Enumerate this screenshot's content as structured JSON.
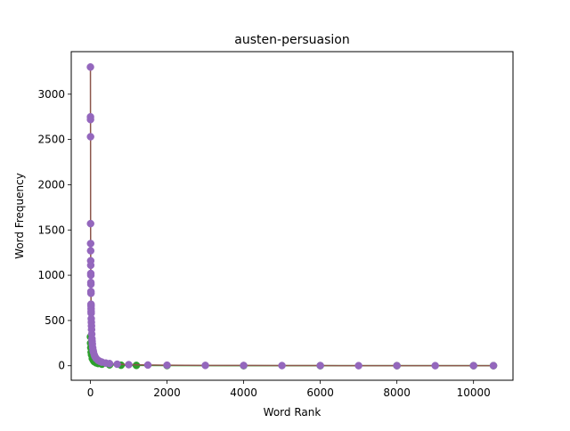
{
  "chart_data": {
    "type": "line",
    "title": "austen-persuasion",
    "xlabel": "Word Rank",
    "ylabel": "Word Frequency",
    "xlim": [
      -500,
      11030
    ],
    "ylim": [
      -160,
      3470
    ],
    "x_ticks": [
      0,
      2000,
      4000,
      6000,
      8000,
      10000
    ],
    "y_ticks": [
      0,
      500,
      1000,
      1500,
      2000,
      2500,
      3000
    ],
    "grid": false,
    "legend": "none",
    "markers": true,
    "series": [
      {
        "color": "#2ca02c",
        "marker_color": "#2ca02c",
        "x": [
          1,
          5,
          10,
          20,
          30,
          50,
          75,
          100,
          150,
          200,
          300,
          500,
          800,
          1200,
          2000,
          4000,
          6000,
          8000,
          10000,
          10520
        ],
        "y": [
          320,
          250,
          200,
          150,
          120,
          80,
          60,
          45,
          32,
          25,
          17,
          10,
          6,
          4,
          2,
          1,
          1,
          1,
          1,
          1
        ]
      },
      {
        "color": "#8c564b",
        "marker_color": "#9467bd",
        "x": [
          1,
          2,
          3,
          4,
          5,
          6,
          7,
          8,
          9,
          10,
          11,
          12,
          13,
          14,
          15,
          16,
          17,
          18,
          19,
          20,
          22,
          25,
          28,
          30,
          35,
          40,
          45,
          50,
          60,
          70,
          80,
          100,
          120,
          150,
          200,
          250,
          300,
          400,
          500,
          700,
          1000,
          1500,
          2000,
          3000,
          4000,
          5000,
          6000,
          7000,
          8000,
          9000,
          10000,
          10520
        ],
        "y": [
          3300,
          2750,
          2720,
          2530,
          1570,
          1350,
          1270,
          1160,
          1110,
          1020,
          1000,
          920,
          900,
          820,
          800,
          680,
          660,
          630,
          600,
          580,
          520,
          480,
          440,
          400,
          350,
          300,
          270,
          240,
          200,
          170,
          150,
          120,
          100,
          80,
          60,
          48,
          40,
          30,
          24,
          17,
          12,
          8,
          6,
          4,
          3,
          2,
          2,
          1,
          1,
          1,
          1,
          1
        ]
      }
    ]
  }
}
